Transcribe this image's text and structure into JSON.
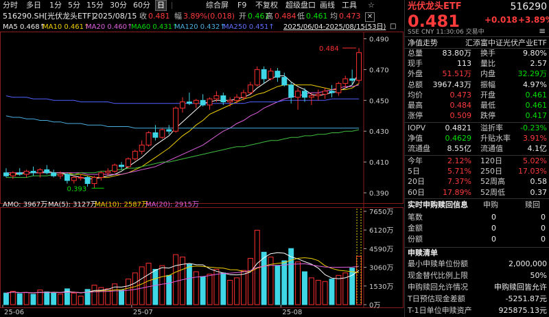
{
  "toolbar": {
    "items": [
      "分时",
      "多日",
      "1分",
      "5分",
      "15分",
      "30分",
      "60分",
      "日"
    ],
    "active": "日",
    "right_items": [
      "综合屏",
      "F9",
      "不复权",
      "超级盘口",
      "画线",
      "工具"
    ],
    "star": "☆"
  },
  "info": {
    "code": "516290.SH[光伏龙头ETF]",
    "date": "2025/08/15",
    "close_label": "收",
    "close": "0.481",
    "change_label": "幅",
    "change": "3.89%(0.018)",
    "open_label": "开",
    "open": "0.461",
    "high_label": "高",
    "high": "0.484",
    "low_label": "低",
    "low": "0.461",
    "avg_label": "均",
    "avg": "0.473"
  },
  "ma_line": {
    "ma5": "MA5 0.468↑",
    "ma10": "MA10 0.461↑",
    "ma20": "MA20 0.460↑",
    "ma60": "MA60 0.431↑",
    "ma120": "MA120 0.432↑",
    "ma250": "MA250 0.451↑",
    "range": "2025/06/04-2025/08/15(53日)"
  },
  "vol_line": {
    "amo": "AMO: 3967万",
    "ma5": "MA(5): 3127万",
    "ma10": "MA(10): 2587万",
    "ma20": "MA(20): 2915万"
  },
  "chart_data": {
    "type": "candlestick",
    "price_axis": [
      "0.490",
      "0.470",
      "0.450",
      "0.430",
      "0.410",
      "0.390"
    ],
    "price_ylim": [
      0.386,
      0.492
    ],
    "volume_axis": [
      "7650万",
      "6120万",
      "4590万",
      "3060万",
      "1530万",
      "0万"
    ],
    "volume_ylim": [
      0,
      7650
    ],
    "x_labels": [
      "25-06",
      "25-07",
      "25-08"
    ],
    "max_annotation": "0.484",
    "min_annotation": "0.393",
    "candles": [
      {
        "o": 0.403,
        "h": 0.406,
        "l": 0.4,
        "c": 0.401,
        "v": 950
      },
      {
        "o": 0.401,
        "h": 0.404,
        "l": 0.399,
        "c": 0.403,
        "v": 1100
      },
      {
        "o": 0.403,
        "h": 0.406,
        "l": 0.401,
        "c": 0.402,
        "v": 900
      },
      {
        "o": 0.402,
        "h": 0.405,
        "l": 0.4,
        "c": 0.404,
        "v": 1000
      },
      {
        "o": 0.404,
        "h": 0.407,
        "l": 0.401,
        "c": 0.403,
        "v": 850
      },
      {
        "o": 0.403,
        "h": 0.406,
        "l": 0.4,
        "c": 0.405,
        "v": 1200
      },
      {
        "o": 0.405,
        "h": 0.408,
        "l": 0.402,
        "c": 0.403,
        "v": 1050
      },
      {
        "o": 0.403,
        "h": 0.405,
        "l": 0.4,
        "c": 0.401,
        "v": 980
      },
      {
        "o": 0.401,
        "h": 0.404,
        "l": 0.399,
        "c": 0.402,
        "v": 880
      },
      {
        "o": 0.402,
        "h": 0.403,
        "l": 0.396,
        "c": 0.398,
        "v": 1300
      },
      {
        "o": 0.398,
        "h": 0.401,
        "l": 0.396,
        "c": 0.4,
        "v": 950
      },
      {
        "o": 0.4,
        "h": 0.402,
        "l": 0.398,
        "c": 0.4,
        "v": 700
      },
      {
        "o": 0.4,
        "h": 0.401,
        "l": 0.394,
        "c": 0.396,
        "v": 1250
      },
      {
        "o": 0.396,
        "h": 0.401,
        "l": 0.393,
        "c": 0.4,
        "v": 1600
      },
      {
        "o": 0.4,
        "h": 0.404,
        "l": 0.398,
        "c": 0.403,
        "v": 1400
      },
      {
        "o": 0.403,
        "h": 0.406,
        "l": 0.401,
        "c": 0.404,
        "v": 1300
      },
      {
        "o": 0.404,
        "h": 0.409,
        "l": 0.403,
        "c": 0.408,
        "v": 1700
      },
      {
        "o": 0.408,
        "h": 0.41,
        "l": 0.405,
        "c": 0.407,
        "v": 1200
      },
      {
        "o": 0.407,
        "h": 0.413,
        "l": 0.406,
        "c": 0.412,
        "v": 2100
      },
      {
        "o": 0.412,
        "h": 0.418,
        "l": 0.411,
        "c": 0.417,
        "v": 2600
      },
      {
        "o": 0.417,
        "h": 0.424,
        "l": 0.415,
        "c": 0.421,
        "v": 3100
      },
      {
        "o": 0.421,
        "h": 0.43,
        "l": 0.42,
        "c": 0.429,
        "v": 3400
      },
      {
        "o": 0.429,
        "h": 0.434,
        "l": 0.424,
        "c": 0.426,
        "v": 2900
      },
      {
        "o": 0.426,
        "h": 0.432,
        "l": 0.425,
        "c": 0.431,
        "v": 3200
      },
      {
        "o": 0.431,
        "h": 0.434,
        "l": 0.428,
        "c": 0.43,
        "v": 2400
      },
      {
        "o": 0.43,
        "h": 0.446,
        "l": 0.429,
        "c": 0.445,
        "v": 4100
      },
      {
        "o": 0.445,
        "h": 0.452,
        "l": 0.442,
        "c": 0.449,
        "v": 3900
      },
      {
        "o": 0.449,
        "h": 0.455,
        "l": 0.447,
        "c": 0.448,
        "v": 3300
      },
      {
        "o": 0.448,
        "h": 0.451,
        "l": 0.445,
        "c": 0.45,
        "v": 2700
      },
      {
        "o": 0.45,
        "h": 0.454,
        "l": 0.446,
        "c": 0.447,
        "v": 2300
      },
      {
        "o": 0.447,
        "h": 0.452,
        "l": 0.444,
        "c": 0.451,
        "v": 2500
      },
      {
        "o": 0.451,
        "h": 0.456,
        "l": 0.449,
        "c": 0.453,
        "v": 2900
      },
      {
        "o": 0.453,
        "h": 0.455,
        "l": 0.447,
        "c": 0.449,
        "v": 2600
      },
      {
        "o": 0.449,
        "h": 0.452,
        "l": 0.446,
        "c": 0.45,
        "v": 2000
      },
      {
        "o": 0.45,
        "h": 0.454,
        "l": 0.448,
        "c": 0.452,
        "v": 2200
      },
      {
        "o": 0.452,
        "h": 0.457,
        "l": 0.45,
        "c": 0.455,
        "v": 2800
      },
      {
        "o": 0.455,
        "h": 0.462,
        "l": 0.454,
        "c": 0.46,
        "v": 3800
      },
      {
        "o": 0.46,
        "h": 0.472,
        "l": 0.459,
        "c": 0.47,
        "v": 6100
      },
      {
        "o": 0.47,
        "h": 0.472,
        "l": 0.461,
        "c": 0.464,
        "v": 4300
      },
      {
        "o": 0.464,
        "h": 0.471,
        "l": 0.463,
        "c": 0.469,
        "v": 3900
      },
      {
        "o": 0.469,
        "h": 0.471,
        "l": 0.462,
        "c": 0.465,
        "v": 3200
      },
      {
        "o": 0.465,
        "h": 0.468,
        "l": 0.459,
        "c": 0.46,
        "v": 3600
      },
      {
        "o": 0.46,
        "h": 0.462,
        "l": 0.448,
        "c": 0.452,
        "v": 4600
      },
      {
        "o": 0.452,
        "h": 0.458,
        "l": 0.444,
        "c": 0.456,
        "v": 3500
      },
      {
        "o": 0.456,
        "h": 0.458,
        "l": 0.449,
        "c": 0.452,
        "v": 2700
      },
      {
        "o": 0.452,
        "h": 0.455,
        "l": 0.447,
        "c": 0.453,
        "v": 2200
      },
      {
        "o": 0.453,
        "h": 0.457,
        "l": 0.45,
        "c": 0.454,
        "v": 2000
      },
      {
        "o": 0.454,
        "h": 0.458,
        "l": 0.451,
        "c": 0.456,
        "v": 1900
      },
      {
        "o": 0.456,
        "h": 0.46,
        "l": 0.452,
        "c": 0.455,
        "v": 2100
      },
      {
        "o": 0.455,
        "h": 0.462,
        "l": 0.453,
        "c": 0.461,
        "v": 2400
      },
      {
        "o": 0.461,
        "h": 0.466,
        "l": 0.458,
        "c": 0.464,
        "v": 2600
      },
      {
        "o": 0.464,
        "h": 0.47,
        "l": 0.46,
        "c": 0.463,
        "v": 3000
      },
      {
        "o": 0.463,
        "h": 0.484,
        "l": 0.461,
        "c": 0.481,
        "v": 3967
      }
    ],
    "ma_lines": [
      {
        "name": "MA5",
        "color": "#ffffff",
        "values": [
          0.402,
          0.402,
          0.403,
          0.403,
          0.403,
          0.403,
          0.404,
          0.403,
          0.403,
          0.402,
          0.401,
          0.4,
          0.399,
          0.399,
          0.4,
          0.401,
          0.402,
          0.404,
          0.407,
          0.41,
          0.413,
          0.417,
          0.421,
          0.424,
          0.427,
          0.432,
          0.436,
          0.44,
          0.444,
          0.448,
          0.449,
          0.45,
          0.45,
          0.45,
          0.451,
          0.452,
          0.454,
          0.458,
          0.461,
          0.464,
          0.466,
          0.466,
          0.462,
          0.459,
          0.457,
          0.454,
          0.453,
          0.454,
          0.455,
          0.456,
          0.458,
          0.46,
          0.468
        ]
      },
      {
        "name": "MA10",
        "color": "#f0d000",
        "values": [
          0.402,
          0.402,
          0.402,
          0.403,
          0.403,
          0.403,
          0.403,
          0.403,
          0.403,
          0.403,
          0.402,
          0.402,
          0.401,
          0.4,
          0.4,
          0.4,
          0.401,
          0.402,
          0.403,
          0.405,
          0.407,
          0.41,
          0.413,
          0.416,
          0.419,
          0.423,
          0.427,
          0.43,
          0.434,
          0.437,
          0.441,
          0.443,
          0.445,
          0.447,
          0.449,
          0.451,
          0.452,
          0.454,
          0.455,
          0.457,
          0.459,
          0.46,
          0.46,
          0.46,
          0.46,
          0.46,
          0.459,
          0.458,
          0.457,
          0.457,
          0.457,
          0.458,
          0.461
        ]
      },
      {
        "name": "MA20",
        "color": "#e060e0",
        "values": [
          0.403,
          0.403,
          0.403,
          0.403,
          0.403,
          0.403,
          0.403,
          0.403,
          0.403,
          0.403,
          0.403,
          0.403,
          0.402,
          0.402,
          0.402,
          0.402,
          0.402,
          0.402,
          0.403,
          0.404,
          0.405,
          0.406,
          0.407,
          0.409,
          0.411,
          0.413,
          0.415,
          0.417,
          0.419,
          0.421,
          0.424,
          0.427,
          0.43,
          0.432,
          0.435,
          0.437,
          0.44,
          0.442,
          0.445,
          0.447,
          0.449,
          0.451,
          0.452,
          0.453,
          0.454,
          0.455,
          0.455,
          0.456,
          0.457,
          0.458,
          0.459,
          0.459,
          0.46
        ]
      },
      {
        "name": "MA60",
        "color": "#40c040",
        "values": [
          0.4,
          0.4,
          0.4,
          0.4,
          0.401,
          0.401,
          0.401,
          0.402,
          0.402,
          0.402,
          0.402,
          0.403,
          0.403,
          0.403,
          0.404,
          0.404,
          0.405,
          0.405,
          0.406,
          0.406,
          0.407,
          0.408,
          0.409,
          0.41,
          0.41,
          0.411,
          0.412,
          0.413,
          0.414,
          0.415,
          0.416,
          0.417,
          0.418,
          0.419,
          0.42,
          0.42,
          0.421,
          0.422,
          0.423,
          0.424,
          0.424,
          0.425,
          0.426,
          0.426,
          0.427,
          0.427,
          0.428,
          0.428,
          0.429,
          0.429,
          0.43,
          0.43,
          0.431
        ]
      },
      {
        "name": "MA120",
        "color": "#4ab0e0",
        "values": [
          0.44,
          0.439,
          0.439,
          0.438,
          0.438,
          0.437,
          0.437,
          0.436,
          0.436,
          0.435,
          0.435,
          0.435,
          0.434,
          0.434,
          0.434,
          0.433,
          0.433,
          0.433,
          0.433,
          0.432,
          0.432,
          0.432,
          0.432,
          0.432,
          0.432,
          0.432,
          0.432,
          0.432,
          0.432,
          0.432,
          0.432,
          0.432,
          0.432,
          0.432,
          0.432,
          0.432,
          0.432,
          0.432,
          0.432,
          0.432,
          0.432,
          0.432,
          0.432,
          0.432,
          0.432,
          0.432,
          0.432,
          0.432,
          0.432,
          0.432,
          0.432,
          0.432,
          0.432
        ]
      },
      {
        "name": "MA250",
        "color": "#5060ff",
        "values": [
          0.453,
          0.452,
          0.452,
          0.452,
          0.451,
          0.451,
          0.451,
          0.45,
          0.45,
          0.45,
          0.45,
          0.449,
          0.449,
          0.449,
          0.449,
          0.449,
          0.448,
          0.448,
          0.448,
          0.448,
          0.448,
          0.448,
          0.448,
          0.448,
          0.448,
          0.448,
          0.448,
          0.448,
          0.448,
          0.448,
          0.448,
          0.448,
          0.448,
          0.448,
          0.448,
          0.448,
          0.449,
          0.449,
          0.449,
          0.449,
          0.449,
          0.45,
          0.45,
          0.45,
          0.45,
          0.45,
          0.45,
          0.45,
          0.451,
          0.451,
          0.451,
          0.451,
          0.451
        ]
      }
    ]
  },
  "panel": {
    "title": "光伏龙头ETF",
    "code": "516290",
    "price": "0.481",
    "change": "+0.018",
    "change_pct": "+3.89%",
    "meta": "SSE CNY 11:30:06 交易中",
    "menu_icon": "≡",
    "trend_label": "净值走势",
    "fund_name": "汇添富中证光伏产业ETF",
    "rows": [
      {
        "l1": "总量",
        "v1": "83.80万",
        "c1": "white",
        "l2": "换手",
        "v2": "9.80%",
        "c2": "white"
      },
      {
        "l1": "现手",
        "v1": "113",
        "c1": "white",
        "l2": "量比",
        "v2": "2.57",
        "c2": "white"
      },
      {
        "l1": "外盘",
        "v1": "51.51万",
        "c1": "red",
        "l2": "内盘",
        "v2": "32.29万",
        "c2": "green"
      },
      {
        "l1": "总额",
        "v1": "3967.43万",
        "c1": "white",
        "l2": "振幅",
        "v2": "4.97%",
        "c2": "white"
      },
      {
        "l1": "均价",
        "v1": "0.473",
        "c1": "red",
        "l2": "开盘",
        "v2": "0.461",
        "c2": "green"
      },
      {
        "l1": "最高",
        "v1": "0.484",
        "c1": "red",
        "l2": "最低",
        "v2": "0.461",
        "c2": "green"
      },
      {
        "l1": "涨停",
        "v1": "0.509",
        "c1": "red",
        "l2": "跌停",
        "v2": "0.417",
        "c2": "green"
      }
    ],
    "rows2": [
      {
        "l1": "IOPV",
        "v1": "0.4821",
        "c1": "white",
        "l2": "溢折率",
        "v2": "-0.23%",
        "c2": "green"
      },
      {
        "l1": "净值",
        "v1": "0.4629",
        "c1": "green",
        "l2": "升贴水率",
        "v2": "3.91%",
        "c2": "red"
      },
      {
        "l1": "流通盘",
        "v1": "8.55亿",
        "c1": "white",
        "l2": "流通值",
        "v2": "4.1亿",
        "c2": "white"
      }
    ],
    "rows3": [
      {
        "l1": "今年",
        "v1": "2.12%",
        "c1": "red",
        "l2": "120日",
        "v2": "5.02%",
        "c2": "red"
      },
      {
        "l1": "5日",
        "v1": "5.71%",
        "c1": "red",
        "l2": "250日",
        "v2": "17.03%",
        "c2": "red"
      },
      {
        "l1": "20日",
        "v1": "7.37%",
        "c1": "red",
        "l2": "52周高",
        "v2": "0.58",
        "c2": "white"
      },
      {
        "l1": "60日",
        "v1": "17.89%",
        "c1": "red",
        "l2": "52周低",
        "v2": "0.37",
        "c2": "white"
      }
    ],
    "sr_title": "实时申购赎回信息",
    "sr_h1": "申购",
    "sr_h2": "赎回",
    "sr_rows": [
      {
        "label": "笔数",
        "v1": "0",
        "v2": "0"
      },
      {
        "label": "金额",
        "v1": "0",
        "v2": "0"
      },
      {
        "label": "份额",
        "v1": "0",
        "v2": "0"
      }
    ],
    "sr_list_title": "申赎清单",
    "sr_list": [
      {
        "label": "最小申赎单位份额",
        "value": "2,000,000"
      },
      {
        "label": "现金替代比例上限",
        "value": "50%"
      },
      {
        "label": "申购赎回允许情况",
        "value": "申购赎回皆允许"
      },
      {
        "label": "T日预估现金差额",
        "value": "-5251.87元"
      },
      {
        "label": "T-1日单位申赎资产",
        "value": "925875.13元"
      }
    ]
  }
}
